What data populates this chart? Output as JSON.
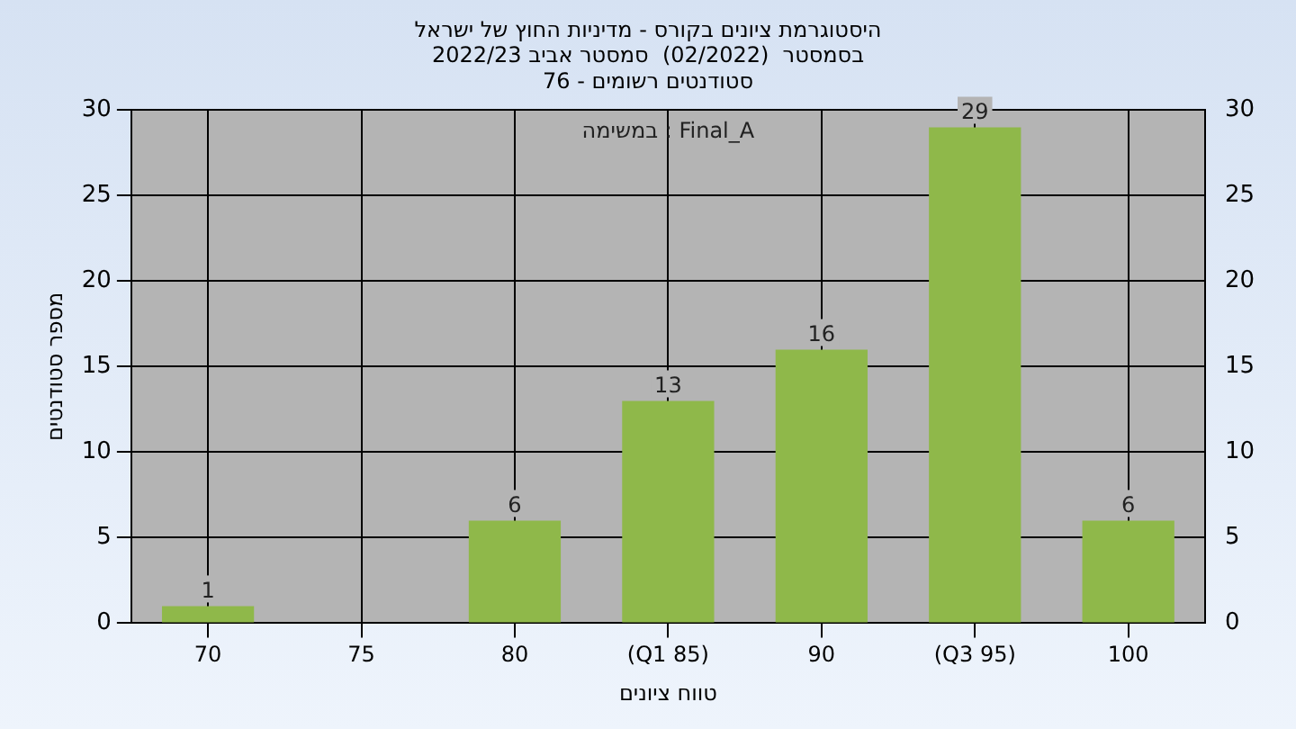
{
  "chart_data": {
    "type": "bar",
    "title": "היסטוגרמת ציונים בקורס - מדיניות החוץ של ישראל",
    "subtitle": "בסמסטר  (02/2022)  סמסטר אביב 2022/23\nסטודנטים רשומים - 76",
    "xlabel": "טווח ציונים",
    "ylabel": "מספר סטודנטים",
    "categories": [
      "70",
      "75",
      "80",
      "(Q1 85)",
      "90",
      "(Q3 95)",
      "100"
    ],
    "values": [
      1,
      0,
      6,
      13,
      16,
      29,
      6
    ],
    "color": "#8fb84a",
    "value_labels": [
      "1",
      null,
      "6",
      "13",
      "16",
      "29",
      "6"
    ],
    "ylim": [
      0,
      30
    ],
    "yticks": [
      0,
      5,
      10,
      15,
      20,
      25,
      30
    ],
    "y2lim": [
      0,
      30
    ],
    "y2ticks": [
      0,
      5,
      10,
      15,
      20,
      25,
      30
    ],
    "annotations": [
      "במשימה : Final_A"
    ],
    "grid": true,
    "legend": false
  }
}
